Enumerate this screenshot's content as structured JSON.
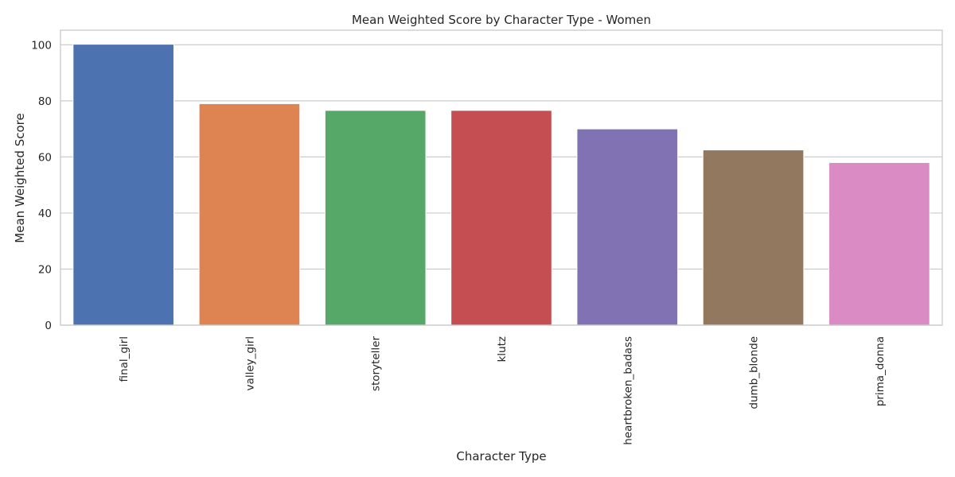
{
  "chart_data": {
    "type": "bar",
    "title": "Mean Weighted Score by Character Type - Women",
    "xlabel": "Character Type",
    "ylabel": "Mean Weighted Score",
    "categories": [
      "final_girl",
      "valley_girl",
      "storyteller",
      "klutz",
      "heartbroken_badass",
      "dumb_blonde",
      "prima_donna"
    ],
    "values": [
      100.2,
      79.0,
      76.6,
      76.6,
      70.0,
      62.5,
      58.0
    ],
    "colors": [
      "#4c72b0",
      "#dd8452",
      "#55a868",
      "#c44e52",
      "#8172b3",
      "#937860",
      "#da8bc3"
    ],
    "ylim": [
      0,
      105.2
    ],
    "yticks": [
      0,
      20,
      40,
      60,
      80,
      100
    ],
    "grid": true,
    "legend": "none"
  }
}
